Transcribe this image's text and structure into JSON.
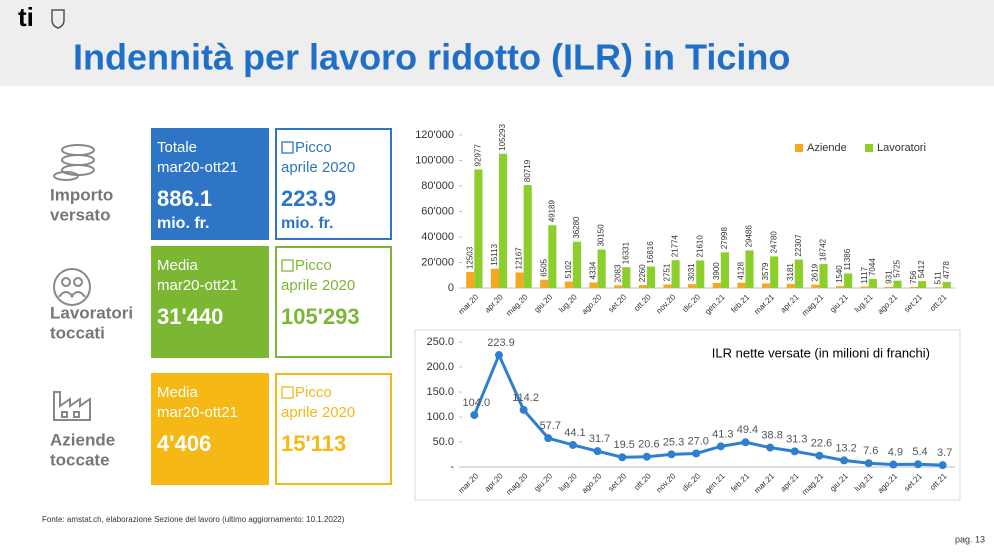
{
  "header": {
    "logo": "ti",
    "title": "Indennità per lavoro ridotto (ILR) in Ticino"
  },
  "infographic": {
    "rows": [
      {
        "label": [
          "Importo",
          "versato"
        ],
        "primary": [
          "Totale",
          "mar20-ott21",
          "886.1",
          "mio. fr."
        ],
        "peak": [
          "Picco",
          "aprile 2020",
          "223.9",
          "mio. fr."
        ],
        "color": "#2e75c6"
      },
      {
        "label": [
          "Lavoratori",
          "toccati"
        ],
        "primary": [
          "Media",
          "mar20-ott21",
          "31'440"
        ],
        "peak": [
          "Picco",
          "aprile 2020",
          "105'293"
        ],
        "color": "#7cb734"
      },
      {
        "label": [
          "Aziende",
          "toccate"
        ],
        "primary": [
          "Media",
          "mar20-ott21",
          "4'406"
        ],
        "peak": [
          "Picco",
          "aprile 2020",
          "15'113"
        ],
        "color": "#f5b814"
      }
    ]
  },
  "chart_data": [
    {
      "type": "bar",
      "categories": [
        "mar.20",
        "apr.20",
        "mag.20",
        "giu.20",
        "lug.20",
        "ago.20",
        "set.20",
        "ott.20",
        "nov.20",
        "dic.20",
        "gen.21",
        "feb.21",
        "mar.21",
        "apr.21",
        "mag.21",
        "giu.21",
        "lug.21",
        "ago.21",
        "set.21",
        "ott.21"
      ],
      "series": [
        {
          "name": "Aziende",
          "color": "#f7a823",
          "values": [
            12503,
            15113,
            12167,
            6505,
            5102,
            4334,
            2083,
            2260,
            2751,
            3031,
            3900,
            4128,
            3579,
            3181,
            2619,
            1540,
            1117,
            931,
            756,
            511
          ]
        },
        {
          "name": "Lavoratori",
          "color": "#8ccf2a",
          "values": [
            92977,
            105293,
            80719,
            49189,
            36280,
            30150,
            16331,
            16816,
            21774,
            21610,
            27998,
            29486,
            24780,
            22307,
            18742,
            11386,
            7044,
            5725,
            5412,
            4778
          ]
        }
      ],
      "ylim": [
        0,
        120000
      ],
      "yticks": [
        0,
        {
          "value": 20000,
          "label": "20'000"
        },
        {
          "value": 40000,
          "label": "40'000"
        },
        {
          "value": 60000,
          "label": "60'000"
        },
        {
          "value": 80000,
          "label": "80'000"
        },
        {
          "value": 100000,
          "label": "100'000"
        },
        {
          "value": 120000,
          "label": "120'000"
        }
      ],
      "legend": "top-right",
      "grid": false
    },
    {
      "type": "line",
      "title": "ILR nette versate (in milioni di franchi)",
      "categories": [
        "mar.20",
        "apr.20",
        "mag.20",
        "giu.20",
        "lug.20",
        "ago.20",
        "set.20",
        "ott.20",
        "nov.20",
        "dic.20",
        "gen.21",
        "feb.21",
        "mar.21",
        "apr.21",
        "mag.21",
        "giu.21",
        "lug.21",
        "ago.21",
        "set.21",
        "ott.21"
      ],
      "values": [
        104.0,
        223.9,
        114.2,
        57.7,
        44.1,
        31.7,
        19.5,
        20.6,
        25.3,
        27.0,
        41.3,
        49.4,
        38.8,
        31.3,
        22.6,
        13.2,
        7.6,
        4.9,
        5.4,
        3.7
      ],
      "value_labels": [
        "104.0",
        "223.9",
        "114.2",
        "57.7",
        "44.1",
        "31.7",
        "19.5",
        "20.6",
        "25.3",
        "27.0",
        "41.3",
        "49.4",
        "38.8",
        "31.3",
        "22.6",
        "13.2",
        "7.6",
        "4.9",
        "5.4",
        "3.7"
      ],
      "color": "#2f7fd0",
      "ylim": [
        0,
        250
      ],
      "yticks": [
        {
          "value": 0,
          "label": "-"
        },
        {
          "value": 50,
          "label": "50.0"
        },
        {
          "value": 100,
          "label": "100.0"
        },
        {
          "value": 150,
          "label": "150.0"
        },
        {
          "value": 200,
          "label": "200.0"
        },
        {
          "value": 250,
          "label": "250.0"
        }
      ],
      "grid": false
    }
  ],
  "footer": {
    "source": "Fonte: amstat.ch, elaborazione Sezione del lavoro (ultimo aggiornamento: 10.1.2022)",
    "page": "pag. 13"
  }
}
